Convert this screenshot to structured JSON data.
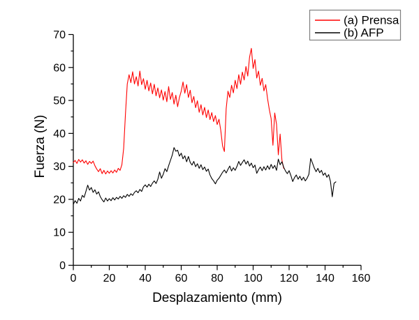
{
  "chart_data": {
    "type": "line",
    "title": "",
    "xlabel": "Desplazamiento (mm)",
    "ylabel": "Fuerza (N)",
    "xlim": [
      0,
      160
    ],
    "ylim": [
      0,
      70
    ],
    "x_ticks": [
      0,
      20,
      40,
      60,
      80,
      100,
      120,
      140,
      160
    ],
    "y_ticks": [
      0,
      10,
      20,
      30,
      40,
      50,
      60,
      70
    ],
    "x_minor_step": 10,
    "y_minor_step": 5,
    "grid": false,
    "legend": {
      "position": "top-right",
      "border_color": "#7f7f7f",
      "background": "#ffffff"
    },
    "colors": {
      "axis": "#000000",
      "prensa": "#ff0000",
      "afp": "#000000"
    },
    "series": [
      {
        "name": "(a) Prensa",
        "color": "#ff0000",
        "points": [
          [
            0,
            31.2
          ],
          [
            1,
            31.8
          ],
          [
            2,
            30.9
          ],
          [
            3,
            32.1
          ],
          [
            4,
            31.3
          ],
          [
            5,
            32.0
          ],
          [
            6,
            31.0
          ],
          [
            7,
            31.7
          ],
          [
            8,
            30.6
          ],
          [
            9,
            31.5
          ],
          [
            10,
            30.9
          ],
          [
            11,
            31.6
          ],
          [
            12,
            30.2
          ],
          [
            13,
            29.2
          ],
          [
            14,
            28.4
          ],
          [
            15,
            29.3
          ],
          [
            16,
            27.8
          ],
          [
            17,
            28.8
          ],
          [
            18,
            27.7
          ],
          [
            19,
            28.6
          ],
          [
            20,
            27.9
          ],
          [
            21,
            28.7
          ],
          [
            22,
            28.0
          ],
          [
            23,
            28.9
          ],
          [
            24,
            28.2
          ],
          [
            25,
            29.4
          ],
          [
            26,
            28.8
          ],
          [
            27,
            30.5
          ],
          [
            28,
            35.5
          ],
          [
            29,
            46.0
          ],
          [
            30,
            55.0
          ],
          [
            31,
            57.8
          ],
          [
            32,
            55.4
          ],
          [
            33,
            58.7
          ],
          [
            34,
            55.0
          ],
          [
            35,
            57.2
          ],
          [
            36,
            54.4
          ],
          [
            37,
            58.9
          ],
          [
            38,
            54.8
          ],
          [
            39,
            56.6
          ],
          [
            40,
            53.4
          ],
          [
            41,
            56.1
          ],
          [
            42,
            52.9
          ],
          [
            43,
            55.3
          ],
          [
            44,
            52.0
          ],
          [
            45,
            54.9
          ],
          [
            46,
            51.4
          ],
          [
            47,
            53.8
          ],
          [
            48,
            50.8
          ],
          [
            49,
            53.2
          ],
          [
            50,
            50.1
          ],
          [
            51,
            52.7
          ],
          [
            52,
            49.6
          ],
          [
            53,
            54.2
          ],
          [
            54,
            50.3
          ],
          [
            55,
            52.4
          ],
          [
            56,
            48.9
          ],
          [
            57,
            51.6
          ],
          [
            58,
            48.1
          ],
          [
            59,
            50.9
          ],
          [
            60,
            52.8
          ],
          [
            61,
            55.6
          ],
          [
            62,
            52.2
          ],
          [
            63,
            54.8
          ],
          [
            64,
            50.9
          ],
          [
            65,
            53.1
          ],
          [
            66,
            49.3
          ],
          [
            67,
            51.2
          ],
          [
            68,
            47.8
          ],
          [
            69,
            49.9
          ],
          [
            70,
            46.4
          ],
          [
            71,
            48.7
          ],
          [
            72,
            45.6
          ],
          [
            73,
            47.9
          ],
          [
            74,
            44.8
          ],
          [
            75,
            47.1
          ],
          [
            76,
            44.2
          ],
          [
            77,
            46.3
          ],
          [
            78,
            43.6
          ],
          [
            79,
            45.4
          ],
          [
            80,
            42.7
          ],
          [
            81,
            44.3
          ],
          [
            82,
            40.9
          ],
          [
            83,
            36.2
          ],
          [
            84,
            34.5
          ],
          [
            85,
            47.5
          ],
          [
            86,
            52.8
          ],
          [
            87,
            50.9
          ],
          [
            88,
            54.6
          ],
          [
            89,
            52.3
          ],
          [
            90,
            56.1
          ],
          [
            91,
            53.6
          ],
          [
            92,
            57.8
          ],
          [
            93,
            54.9
          ],
          [
            94,
            58.6
          ],
          [
            95,
            56.2
          ],
          [
            96,
            60.3
          ],
          [
            97,
            57.4
          ],
          [
            98,
            63.1
          ],
          [
            99,
            65.8
          ],
          [
            100,
            59.7
          ],
          [
            101,
            62.4
          ],
          [
            102,
            56.8
          ],
          [
            103,
            58.9
          ],
          [
            104,
            54.6
          ],
          [
            105,
            56.7
          ],
          [
            106,
            52.9
          ],
          [
            107,
            54.8
          ],
          [
            108,
            50.6
          ],
          [
            109,
            47.2
          ],
          [
            110,
            44.5
          ],
          [
            111,
            36.4
          ],
          [
            112,
            46.2
          ],
          [
            113,
            42.8
          ],
          [
            114,
            33.5
          ],
          [
            115,
            39.8
          ],
          [
            116,
            31.9
          ],
          [
            117,
            29.4
          ]
        ]
      },
      {
        "name": "(b) AFP",
        "color": "#000000",
        "points": [
          [
            0,
            18.5
          ],
          [
            1,
            19.6
          ],
          [
            2,
            18.8
          ],
          [
            3,
            20.3
          ],
          [
            4,
            19.5
          ],
          [
            5,
            21.2
          ],
          [
            6,
            20.6
          ],
          [
            7,
            22.4
          ],
          [
            8,
            24.3
          ],
          [
            9,
            22.8
          ],
          [
            10,
            23.6
          ],
          [
            11,
            22.1
          ],
          [
            12,
            22.9
          ],
          [
            13,
            21.6
          ],
          [
            14,
            22.3
          ],
          [
            15,
            20.8
          ],
          [
            16,
            19.9
          ],
          [
            17,
            19.2
          ],
          [
            18,
            20.4
          ],
          [
            19,
            19.5
          ],
          [
            20,
            20.2
          ],
          [
            21,
            19.6
          ],
          [
            22,
            20.5
          ],
          [
            23,
            19.8
          ],
          [
            24,
            20.6
          ],
          [
            25,
            20.1
          ],
          [
            26,
            20.9
          ],
          [
            27,
            20.3
          ],
          [
            28,
            21.1
          ],
          [
            29,
            20.6
          ],
          [
            30,
            21.5
          ],
          [
            31,
            20.9
          ],
          [
            32,
            21.7
          ],
          [
            33,
            21.2
          ],
          [
            34,
            22.1
          ],
          [
            35,
            22.6
          ],
          [
            36,
            22.0
          ],
          [
            37,
            23.0
          ],
          [
            38,
            22.4
          ],
          [
            39,
            23.8
          ],
          [
            40,
            24.4
          ],
          [
            41,
            23.7
          ],
          [
            42,
            24.6
          ],
          [
            43,
            23.9
          ],
          [
            44,
            24.9
          ],
          [
            45,
            25.6
          ],
          [
            46,
            24.8
          ],
          [
            47,
            26.1
          ],
          [
            48,
            28.3
          ],
          [
            49,
            26.4
          ],
          [
            50,
            27.6
          ],
          [
            51,
            29.3
          ],
          [
            52,
            28.4
          ],
          [
            53,
            30.2
          ],
          [
            54,
            31.8
          ],
          [
            55,
            33.4
          ],
          [
            56,
            35.7
          ],
          [
            57,
            34.6
          ],
          [
            58,
            34.9
          ],
          [
            59,
            33.1
          ],
          [
            60,
            34.0
          ],
          [
            61,
            32.3
          ],
          [
            62,
            33.2
          ],
          [
            63,
            31.4
          ],
          [
            64,
            33.0
          ],
          [
            65,
            31.2
          ],
          [
            66,
            30.4
          ],
          [
            67,
            31.5
          ],
          [
            68,
            29.9
          ],
          [
            69,
            30.8
          ],
          [
            70,
            29.4
          ],
          [
            71,
            30.5
          ],
          [
            72,
            29.0
          ],
          [
            73,
            29.8
          ],
          [
            74,
            28.5
          ],
          [
            75,
            29.2
          ],
          [
            76,
            27.4
          ],
          [
            77,
            26.3
          ],
          [
            78,
            25.6
          ],
          [
            79,
            24.7
          ],
          [
            80,
            25.8
          ],
          [
            81,
            26.4
          ],
          [
            82,
            27.3
          ],
          [
            83,
            28.2
          ],
          [
            84,
            28.9
          ],
          [
            85,
            28.0
          ],
          [
            86,
            29.1
          ],
          [
            87,
            30.1
          ],
          [
            88,
            28.6
          ],
          [
            89,
            29.6
          ],
          [
            90,
            28.8
          ],
          [
            91,
            30.0
          ],
          [
            92,
            31.5
          ],
          [
            93,
            30.3
          ],
          [
            94,
            31.2
          ],
          [
            95,
            32.0
          ],
          [
            96,
            30.7
          ],
          [
            97,
            31.6
          ],
          [
            98,
            30.1
          ],
          [
            99,
            31.0
          ],
          [
            100,
            29.6
          ],
          [
            101,
            30.4
          ],
          [
            102,
            27.9
          ],
          [
            103,
            29.0
          ],
          [
            104,
            29.8
          ],
          [
            105,
            28.7
          ],
          [
            106,
            29.9
          ],
          [
            107,
            28.9
          ],
          [
            108,
            30.2
          ],
          [
            109,
            29.1
          ],
          [
            110,
            30.6
          ],
          [
            111,
            29.4
          ],
          [
            112,
            30.3
          ],
          [
            113,
            28.8
          ],
          [
            114,
            32.2
          ],
          [
            115,
            30.5
          ],
          [
            116,
            31.4
          ],
          [
            117,
            29.7
          ],
          [
            118,
            28.6
          ],
          [
            119,
            27.8
          ],
          [
            120,
            28.7
          ],
          [
            121,
            27.2
          ],
          [
            122,
            25.4
          ],
          [
            123,
            26.6
          ],
          [
            124,
            27.4
          ],
          [
            125,
            26.1
          ],
          [
            126,
            27.0
          ],
          [
            127,
            25.8
          ],
          [
            128,
            26.7
          ],
          [
            129,
            25.6
          ],
          [
            130,
            26.4
          ],
          [
            131,
            27.6
          ],
          [
            132,
            32.4
          ],
          [
            133,
            31.0
          ],
          [
            134,
            29.5
          ],
          [
            135,
            28.4
          ],
          [
            136,
            29.4
          ],
          [
            137,
            28.1
          ],
          [
            138,
            28.8
          ],
          [
            139,
            27.3
          ],
          [
            140,
            28.0
          ],
          [
            141,
            26.7
          ],
          [
            142,
            27.5
          ],
          [
            143,
            25.4
          ],
          [
            144,
            20.8
          ],
          [
            145,
            24.9
          ],
          [
            146,
            25.3
          ]
        ]
      }
    ]
  }
}
